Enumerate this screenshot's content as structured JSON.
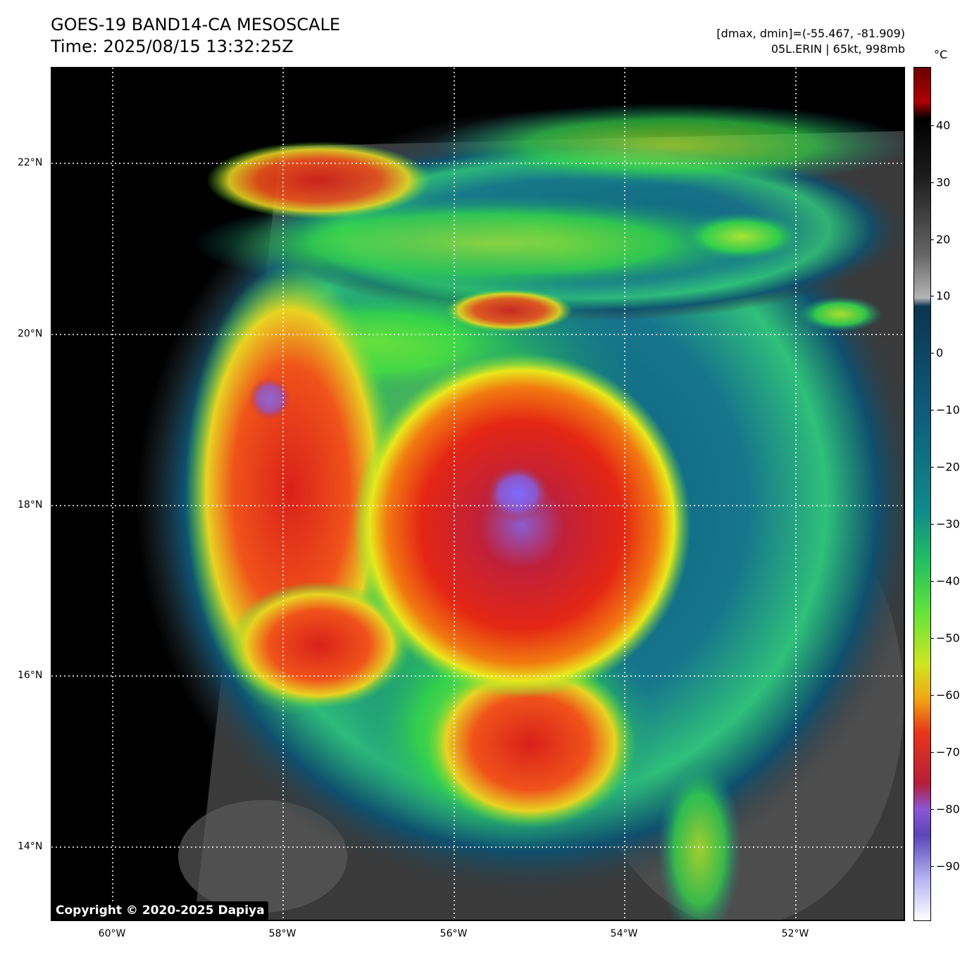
{
  "header": {
    "title_line1": "GOES-19 BAND14-CA MESOSCALE",
    "title_line2": "Time: 2025/08/15 13:32:25Z",
    "range_info": "[dmax, dmin]=(-55.467, -81.909)",
    "storm_info": "05L.ERIN | 65kt, 998mb"
  },
  "colorbar": {
    "unit": "°C",
    "ticks": [
      "40",
      "30",
      "20",
      "10",
      "0",
      "−10",
      "−20",
      "−30",
      "−40",
      "−50",
      "−60",
      "−70",
      "−80",
      "−90"
    ],
    "range_c": [
      -100,
      50
    ]
  },
  "map": {
    "lat_labels": [
      "22°N",
      "20°N",
      "18°N",
      "16°N",
      "14°N"
    ],
    "lon_labels": [
      "60°W",
      "58°W",
      "56°W",
      "54°W",
      "52°W"
    ],
    "storm_center": "18°N 55°W"
  },
  "copyright": "Copyright © 2020-2025 Dapiya"
}
